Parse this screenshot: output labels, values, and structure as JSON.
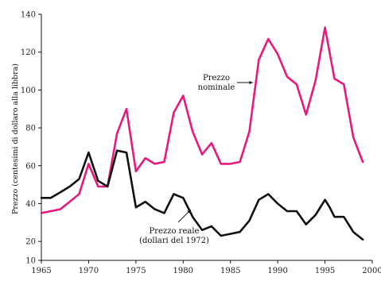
{
  "chart_data": {
    "type": "line",
    "title": "",
    "xlabel": "",
    "ylabel": "Prezzo (centesimi di dollaro alla libbra)",
    "xlim": [
      1965,
      2000
    ],
    "ylim": [
      10,
      140
    ],
    "xticks": [
      1965,
      1970,
      1975,
      1980,
      1985,
      1990,
      1995,
      2000
    ],
    "yticks": [
      10,
      20,
      40,
      60,
      80,
      100,
      120,
      140
    ],
    "grid": false,
    "legend": "none",
    "series": [
      {
        "name": "Prezzo nominale",
        "color": "#e8197d",
        "label_lines": [
          "Prezzo",
          "nominale"
        ],
        "x": [
          1965,
          1966,
          1967,
          1968,
          1969,
          1970,
          1971,
          1972,
          1973,
          1974,
          1975,
          1976,
          1977,
          1978,
          1979,
          1980,
          1981,
          1982,
          1983,
          1984,
          1985,
          1986,
          1987,
          1988,
          1989,
          1990,
          1991,
          1992,
          1993,
          1994,
          1995,
          1996,
          1997,
          1998,
          1999
        ],
        "values": [
          35,
          36,
          37,
          41,
          45,
          61,
          49,
          49,
          77,
          90,
          57,
          64,
          61,
          62,
          88,
          97,
          78,
          66,
          72,
          61,
          61,
          62,
          78,
          116,
          127,
          119,
          107,
          103,
          87,
          105,
          133,
          106,
          103,
          75,
          62
        ]
      },
      {
        "name": "Prezzo reale (dollari del 1972)",
        "color": "#111111",
        "label_lines": [
          "Prezzo reale",
          "(dollari del 1972)"
        ],
        "x": [
          1965,
          1966,
          1967,
          1968,
          1969,
          1970,
          1971,
          1972,
          1973,
          1974,
          1975,
          1976,
          1977,
          1978,
          1979,
          1980,
          1981,
          1982,
          1983,
          1984,
          1985,
          1986,
          1987,
          1988,
          1989,
          1990,
          1991,
          1992,
          1993,
          1994,
          1995,
          1995.5,
          1996,
          1997,
          1998,
          1999
        ],
        "values": [
          43,
          43,
          46,
          49,
          53,
          67,
          52,
          49,
          68,
          67,
          38,
          41,
          37,
          35,
          45,
          43,
          33,
          26,
          28,
          23,
          24,
          25,
          31,
          42,
          45,
          40,
          36,
          36,
          29,
          34,
          42,
          38,
          33,
          33,
          25,
          21
        ]
      }
    ]
  }
}
